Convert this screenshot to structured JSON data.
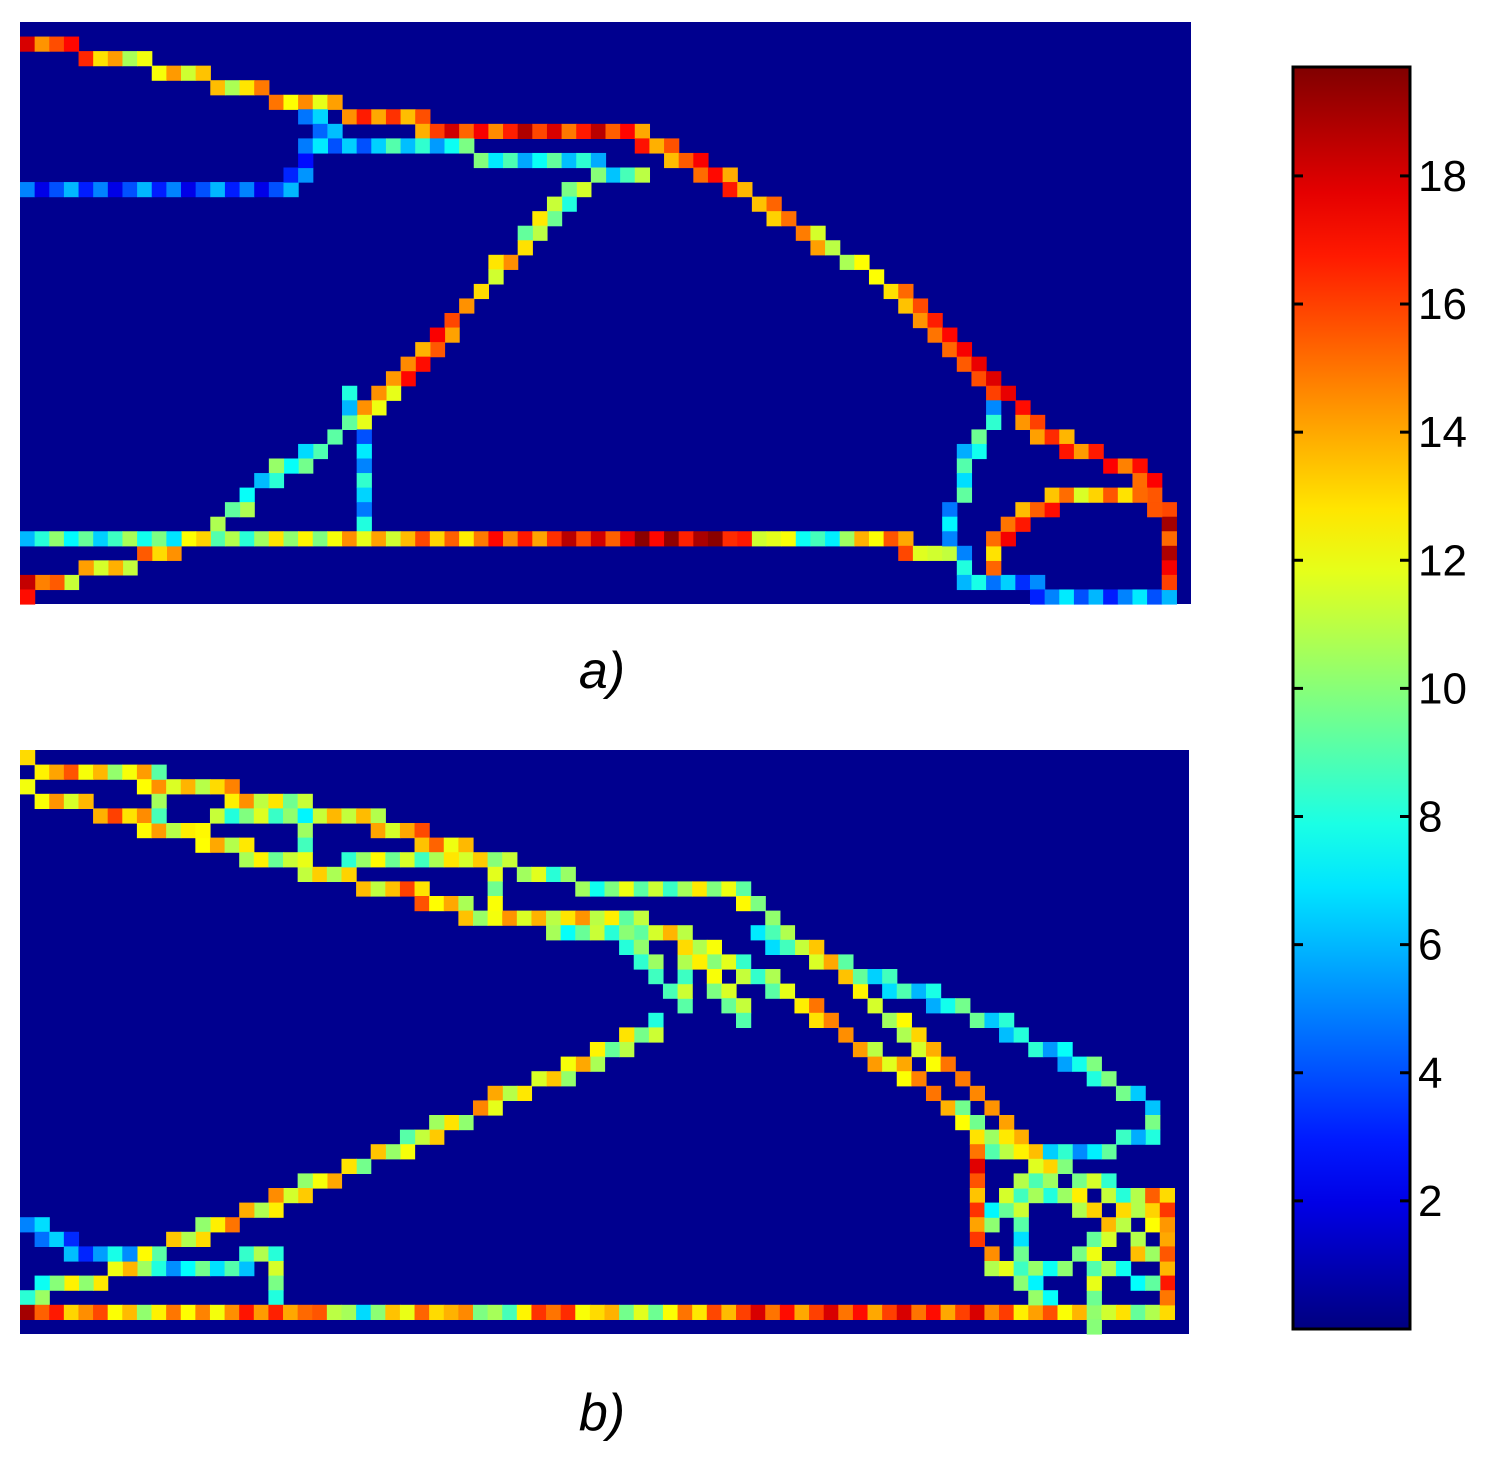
{
  "chart_data": [
    {
      "type": "heatmap",
      "panel_label": "a)",
      "colormap": "jet",
      "background_color": "#00008f",
      "structure": [
        {
          "name": "top-chord",
          "pts": [
            [
              0.0,
              0.02
            ],
            [
              0.1,
              0.06
            ],
            [
              0.22,
              0.12
            ],
            [
              0.35,
              0.17
            ],
            [
              0.46,
              0.18
            ],
            [
              0.53,
              0.19
            ],
            [
              0.6,
              0.26
            ],
            [
              0.66,
              0.34
            ],
            [
              0.73,
              0.43
            ],
            [
              0.79,
              0.53
            ],
            [
              0.84,
              0.63
            ],
            [
              0.87,
              0.7
            ],
            [
              0.91,
              0.74
            ],
            [
              0.96,
              0.78
            ],
            [
              0.99,
              0.86
            ]
          ],
          "v": [
            17,
            12,
            13,
            16,
            17,
            16,
            15,
            14,
            12,
            15,
            16,
            14,
            15,
            17,
            18
          ]
        },
        {
          "name": "upper-brace",
          "pts": [
            [
              0.23,
              0.13
            ],
            [
              0.27,
              0.2
            ],
            [
              0.32,
              0.21
            ],
            [
              0.4,
              0.22
            ],
            [
              0.48,
              0.23
            ],
            [
              0.53,
              0.26
            ]
          ],
          "v": [
            6,
            5,
            7,
            8,
            7,
            9
          ]
        },
        {
          "name": "left-tie",
          "pts": [
            [
              0.0,
              0.27
            ],
            [
              0.12,
              0.27
            ],
            [
              0.23,
              0.27
            ],
            [
              0.25,
              0.2
            ]
          ],
          "v": [
            4,
            4,
            4,
            5
          ]
        },
        {
          "name": "diagonal",
          "pts": [
            [
              0.49,
              0.26
            ],
            [
              0.44,
              0.35
            ],
            [
              0.39,
              0.47
            ],
            [
              0.34,
              0.58
            ],
            [
              0.3,
              0.66
            ],
            [
              0.26,
              0.73
            ],
            [
              0.2,
              0.8
            ],
            [
              0.16,
              0.89
            ],
            [
              0.12,
              0.92
            ],
            [
              0.05,
              0.96
            ],
            [
              0.0,
              0.99
            ]
          ],
          "v": [
            9,
            11,
            14,
            16,
            13,
            9,
            8,
            10,
            14,
            12,
            17
          ]
        },
        {
          "name": "vertical",
          "pts": [
            [
              0.28,
              0.64
            ],
            [
              0.29,
              0.77
            ],
            [
              0.29,
              0.88
            ]
          ],
          "v": [
            6,
            6,
            7
          ]
        },
        {
          "name": "bottom-chord",
          "pts": [
            [
              0.0,
              0.89
            ],
            [
              0.15,
              0.9
            ],
            [
              0.3,
              0.91
            ],
            [
              0.4,
              0.91
            ],
            [
              0.49,
              0.91
            ],
            [
              0.59,
              0.91
            ],
            [
              0.68,
              0.91
            ],
            [
              0.76,
              0.91
            ],
            [
              0.8,
              0.92
            ]
          ],
          "v": [
            8,
            9,
            13,
            15,
            17,
            19,
            7,
            16,
            8
          ]
        },
        {
          "name": "right-lower-brace",
          "pts": [
            [
              0.84,
              0.66
            ],
            [
              0.81,
              0.78
            ],
            [
              0.8,
              0.88
            ],
            [
              0.81,
              0.97
            ],
            [
              0.88,
              0.99
            ],
            [
              0.99,
              0.99
            ]
          ],
          "v": [
            7,
            8,
            6,
            6,
            5,
            5
          ]
        },
        {
          "name": "right-arc",
          "pts": [
            [
              0.83,
              0.95
            ],
            [
              0.85,
              0.87
            ],
            [
              0.88,
              0.84
            ],
            [
              0.92,
              0.81
            ],
            [
              0.96,
              0.81
            ],
            [
              0.99,
              0.86
            ],
            [
              0.99,
              0.98
            ]
          ],
          "v": [
            14,
            16,
            15,
            13,
            14,
            15,
            18
          ]
        }
      ]
    },
    {
      "type": "heatmap",
      "panel_label": "b)",
      "colormap": "jet",
      "background_color": "#00008f",
      "structure": [
        {
          "name": "top-chord-outer",
          "pts": [
            [
              0.0,
              0.01
            ],
            [
              0.08,
              0.03
            ],
            [
              0.16,
              0.06
            ],
            [
              0.25,
              0.09
            ],
            [
              0.33,
              0.13
            ],
            [
              0.4,
              0.18
            ],
            [
              0.45,
              0.21
            ],
            [
              0.52,
              0.23
            ],
            [
              0.61,
              0.22
            ],
            [
              0.64,
              0.28
            ],
            [
              0.7,
              0.37
            ],
            [
              0.75,
              0.46
            ],
            [
              0.8,
              0.55
            ],
            [
              0.85,
              0.65
            ],
            [
              0.89,
              0.72
            ],
            [
              0.95,
              0.77
            ],
            [
              0.99,
              0.85
            ]
          ],
          "v": [
            15,
            12,
            13,
            11,
            14,
            12,
            9,
            10,
            11,
            12,
            14,
            10,
            13,
            12,
            11,
            10,
            16
          ]
        },
        {
          "name": "top-chord-inner",
          "pts": [
            [
              0.0,
              0.06
            ],
            [
              0.08,
              0.1
            ],
            [
              0.16,
              0.15
            ],
            [
              0.25,
              0.2
            ],
            [
              0.33,
              0.24
            ],
            [
              0.4,
              0.28
            ],
            [
              0.46,
              0.29
            ],
            [
              0.52,
              0.29
            ],
            [
              0.57,
              0.32
            ],
            [
              0.63,
              0.38
            ],
            [
              0.68,
              0.44
            ],
            [
              0.73,
              0.52
            ],
            [
              0.78,
              0.58
            ],
            [
              0.81,
              0.64
            ],
            [
              0.85,
              0.68
            ],
            [
              0.89,
              0.76
            ],
            [
              0.95,
              0.83
            ],
            [
              0.99,
              0.9
            ]
          ],
          "v": [
            13,
            14,
            12,
            11,
            14,
            12,
            13,
            11,
            12,
            10,
            13,
            12,
            14,
            11,
            13,
            10,
            12,
            11
          ]
        },
        {
          "name": "right-long-tie",
          "pts": [
            [
              0.63,
              0.31
            ],
            [
              0.7,
              0.36
            ],
            [
              0.77,
              0.41
            ],
            [
              0.86,
              0.49
            ],
            [
              0.93,
              0.56
            ],
            [
              0.98,
              0.61
            ],
            [
              0.98,
              0.66
            ],
            [
              0.92,
              0.69
            ],
            [
              0.84,
              0.69
            ]
          ],
          "v": [
            8,
            7,
            8,
            7,
            8,
            7,
            8,
            7,
            8
          ]
        },
        {
          "name": "cross-ties",
          "pts": [
            [
              0.11,
              0.02
            ],
            [
              0.11,
              0.13
            ],
            [
              0.24,
              0.09
            ],
            [
              0.24,
              0.2
            ],
            [
              0.41,
              0.17
            ],
            [
              0.41,
              0.28
            ],
            [
              0.52,
              0.32
            ],
            [
              0.57,
              0.44
            ],
            [
              0.57,
              0.33
            ],
            [
              0.62,
              0.45
            ]
          ],
          "v": [
            10,
            11,
            9,
            10,
            11,
            10,
            9,
            10,
            11,
            9
          ]
        },
        {
          "name": "diagonal",
          "pts": [
            [
              0.55,
              0.47
            ],
            [
              0.48,
              0.54
            ],
            [
              0.41,
              0.6
            ],
            [
              0.34,
              0.67
            ],
            [
              0.26,
              0.74
            ],
            [
              0.18,
              0.81
            ],
            [
              0.12,
              0.86
            ],
            [
              0.07,
              0.91
            ],
            [
              0.03,
              0.93
            ],
            [
              0.0,
              0.94
            ]
          ],
          "v": [
            10,
            12,
            13,
            11,
            12,
            13,
            11,
            12,
            10,
            9
          ]
        },
        {
          "name": "lower-left-brace",
          "pts": [
            [
              0.0,
              0.82
            ],
            [
              0.05,
              0.87
            ],
            [
              0.12,
              0.89
            ],
            [
              0.18,
              0.9
            ],
            [
              0.21,
              0.86
            ],
            [
              0.21,
              0.96
            ]
          ],
          "v": [
            6,
            5,
            7,
            8,
            9,
            10
          ]
        },
        {
          "name": "bottom-chord",
          "pts": [
            [
              0.0,
              0.98
            ],
            [
              0.1,
              0.98
            ],
            [
              0.23,
              0.98
            ],
            [
              0.29,
              0.98
            ],
            [
              0.35,
              0.98
            ],
            [
              0.41,
              0.98
            ],
            [
              0.46,
              0.98
            ],
            [
              0.52,
              0.98
            ],
            [
              0.62,
              0.98
            ],
            [
              0.72,
              0.98
            ],
            [
              0.82,
              0.98
            ],
            [
              0.9,
              0.98
            ],
            [
              0.99,
              0.98
            ]
          ],
          "v": [
            17,
            12,
            16,
            8,
            15,
            9,
            16,
            10,
            16,
            16,
            16,
            13,
            9
          ]
        },
        {
          "name": "right-cells",
          "pts": [
            [
              0.82,
              0.69
            ],
            [
              0.82,
              0.83
            ],
            [
              0.84,
              0.9
            ],
            [
              0.88,
              0.91
            ],
            [
              0.92,
              0.87
            ],
            [
              0.95,
              0.8
            ],
            [
              0.99,
              0.77
            ],
            [
              0.99,
              0.97
            ]
          ],
          "v": [
            16,
            15,
            10,
            9,
            11,
            12,
            14,
            15
          ]
        },
        {
          "name": "right-inner-ties",
          "pts": [
            [
              0.83,
              0.83
            ],
            [
              0.87,
              0.73
            ],
            [
              0.86,
              0.92
            ],
            [
              0.92,
              0.99
            ],
            [
              0.92,
              0.9
            ],
            [
              0.99,
              0.92
            ]
          ],
          "v": [
            9,
            10,
            8,
            9,
            10,
            9
          ]
        }
      ]
    },
    {
      "type": "colorbar",
      "colormap": "jet",
      "vmin": 0,
      "vmax": 19.7,
      "ticks": [
        2,
        4,
        6,
        8,
        10,
        12,
        14,
        16,
        18
      ],
      "tick_labels": [
        "2",
        "4",
        "6",
        "8",
        "10",
        "12",
        "14",
        "16",
        "18"
      ]
    }
  ]
}
